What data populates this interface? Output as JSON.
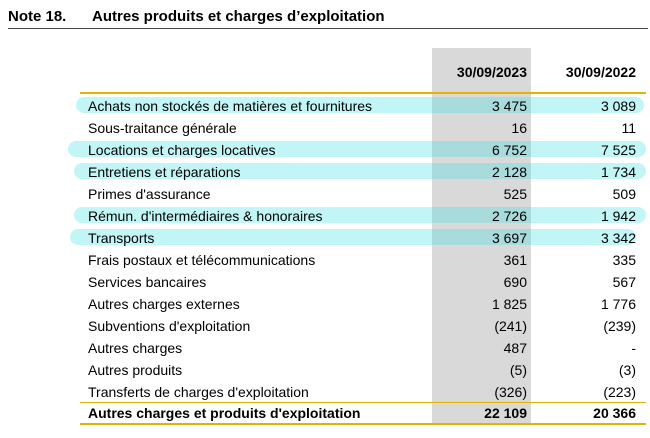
{
  "note": {
    "number": "Note 18.",
    "title": "Autres produits et charges d’exploitation"
  },
  "columns": [
    "30/09/2023",
    "30/09/2022"
  ],
  "rows": [
    {
      "label": "Achats non stockés de matières et fournitures",
      "v2023": "3 475",
      "v2022": "3 089",
      "highlighted": true
    },
    {
      "label": "Sous-traitance générale",
      "v2023": "16",
      "v2022": "11",
      "highlighted": false
    },
    {
      "label": "Locations et charges locatives",
      "v2023": "6 752",
      "v2022": "7 525",
      "highlighted": true
    },
    {
      "label": "Entretiens et réparations",
      "v2023": "2 128",
      "v2022": "1 734",
      "highlighted": true
    },
    {
      "label": "Primes d'assurance",
      "v2023": "525",
      "v2022": "509",
      "highlighted": false
    },
    {
      "label": "Rémun. d'intermédiaires & honoraires",
      "v2023": "2 726",
      "v2022": "1 942",
      "highlighted": true
    },
    {
      "label": "Transports",
      "v2023": "3 697",
      "v2022": "3 342",
      "highlighted": true
    },
    {
      "label": "Frais postaux et télécommunications",
      "v2023": "361",
      "v2022": "335",
      "highlighted": false
    },
    {
      "label": "Services bancaires",
      "v2023": "690",
      "v2022": "567",
      "highlighted": false
    },
    {
      "label": "Autres charges externes",
      "v2023": "1 825",
      "v2022": "1 776",
      "highlighted": false
    },
    {
      "label": "Subventions d'exploitation",
      "v2023": "(241)",
      "v2022": "(239)",
      "highlighted": false
    },
    {
      "label": "Autres charges",
      "v2023": "487",
      "v2022": "-",
      "highlighted": false
    },
    {
      "label": "Autres produits",
      "v2023": "(5)",
      "v2022": "(3)",
      "highlighted": false
    },
    {
      "label": "Transferts de charges d'exploitation",
      "v2023": "(326)",
      "v2022": "(223)",
      "highlighted": false
    }
  ],
  "total": {
    "label": "Autres charges et produits d'exploitation",
    "v2023": "22 109",
    "v2022": "20 366"
  },
  "colors": {
    "highlight": "#40e0e0",
    "rule": "#e2b400",
    "column_shade": "#d9d9d9"
  }
}
